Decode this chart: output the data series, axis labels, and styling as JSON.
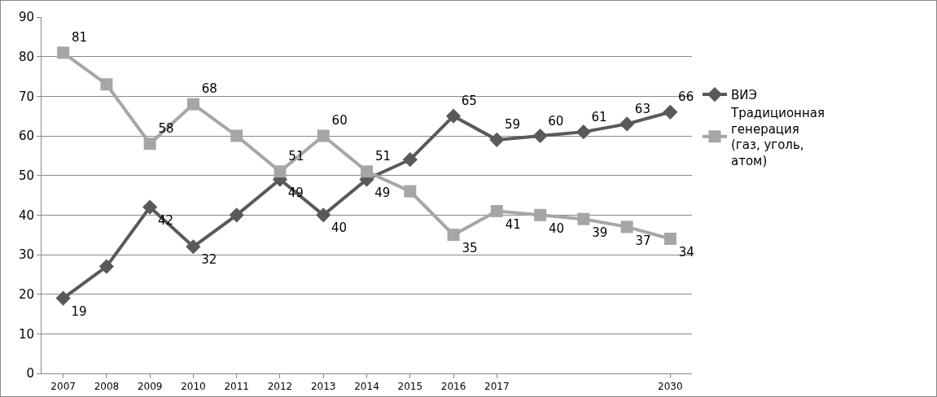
{
  "chart_data": {
    "type": "line",
    "categories": [
      "2007",
      "2008",
      "2009",
      "2010",
      "2011",
      "2012",
      "2013",
      "2014",
      "2015",
      "2016",
      "2017",
      null,
      null,
      null,
      "2030"
    ],
    "series": [
      {
        "name": "ВИЭ",
        "color": "#595959",
        "marker": "diamond",
        "values": [
          19,
          27,
          42,
          32,
          40,
          49,
          40,
          49,
          54,
          65,
          59,
          60,
          61,
          63,
          66
        ],
        "value_labels": [
          "19",
          null,
          "42",
          "32",
          null,
          "49",
          "40",
          "49",
          null,
          "65",
          "59",
          "60",
          "61",
          "63",
          "66"
        ]
      },
      {
        "name": "Традиционная генерация (газ, уголь, атом)",
        "color": "#a6a6a6",
        "marker": "square",
        "values": [
          81,
          73,
          58,
          68,
          60,
          51,
          60,
          51,
          46,
          35,
          41,
          40,
          39,
          37,
          34
        ],
        "value_labels": [
          "81",
          null,
          "58",
          "68",
          null,
          "51",
          "60",
          "51",
          null,
          "35",
          "41",
          "40",
          "39",
          "37",
          "34"
        ]
      }
    ],
    "ylim": [
      0,
      90
    ],
    "yticks": [
      0,
      10,
      20,
      30,
      40,
      50,
      60,
      70,
      80,
      90
    ],
    "grid": "y",
    "legend": "right",
    "line_style": "solid"
  }
}
